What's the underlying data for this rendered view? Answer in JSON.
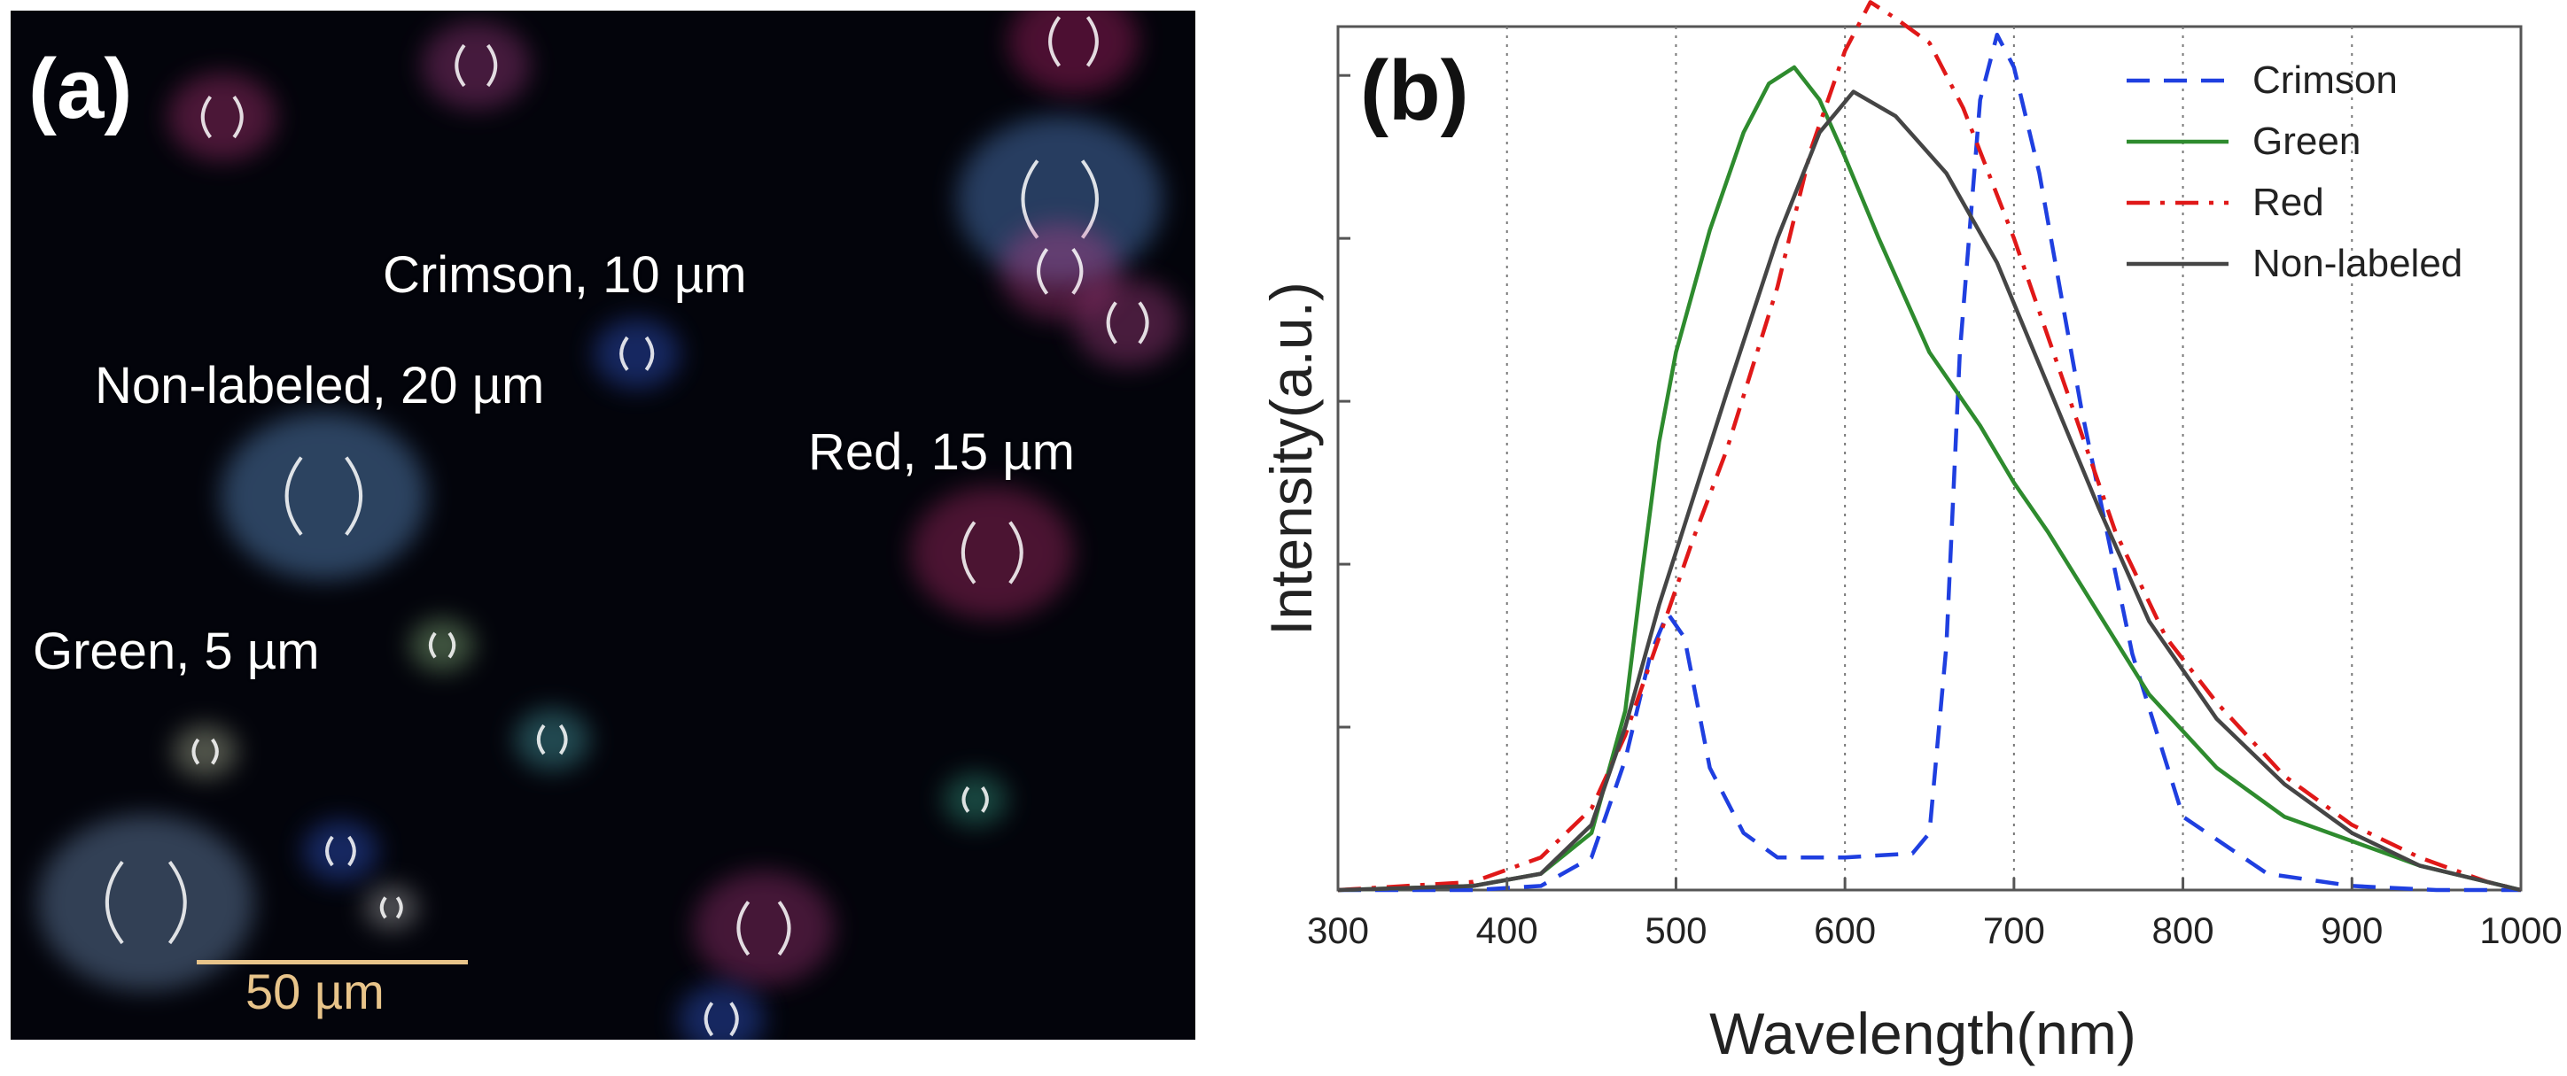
{
  "panel_a": {
    "tag": "(a)",
    "labels": {
      "crimson": "Crimson, 10 µm",
      "non_labeled": "Non-labeled, 20 µm",
      "red": "Red, 15 µm",
      "green": "Green, 5 µm"
    },
    "scale_bar": "50 µm",
    "colors": {
      "background": "#03040b",
      "scale": "#e8c48a"
    }
  },
  "chart_data": {
    "type": "line",
    "panel_tag": "(b)",
    "xlabel": "Wavelength(nm)",
    "ylabel": "Intensity(a.u.)",
    "xlim": [
      300,
      1000
    ],
    "ylim": [
      0,
      1.06
    ],
    "xticks": [
      300,
      400,
      500,
      600,
      700,
      800,
      900,
      1000
    ],
    "grid": "vertical dotted",
    "legend_position": "top-right",
    "series": [
      {
        "name": "Crimson",
        "color": "#1f3fe0",
        "dash": "dashed",
        "x": [
          300,
          380,
          420,
          450,
          470,
          485,
          495,
          505,
          520,
          540,
          560,
          600,
          640,
          650,
          660,
          668,
          680,
          690,
          700,
          715,
          740,
          770,
          800,
          850,
          900,
          950,
          1000
        ],
        "y": [
          0.0,
          0.0,
          0.005,
          0.04,
          0.16,
          0.29,
          0.34,
          0.31,
          0.15,
          0.07,
          0.04,
          0.04,
          0.045,
          0.07,
          0.3,
          0.66,
          0.97,
          1.05,
          1.01,
          0.88,
          0.59,
          0.29,
          0.09,
          0.02,
          0.005,
          0.0,
          0.0
        ]
      },
      {
        "name": "Green",
        "color": "#2e8b2e",
        "dash": "solid",
        "x": [
          300,
          380,
          420,
          450,
          470,
          480,
          490,
          500,
          520,
          540,
          555,
          570,
          585,
          600,
          620,
          650,
          680,
          700,
          720,
          750,
          780,
          820,
          860,
          900,
          940,
          980,
          1000
        ],
        "y": [
          0.0,
          0.005,
          0.02,
          0.07,
          0.22,
          0.39,
          0.55,
          0.66,
          0.81,
          0.93,
          0.99,
          1.01,
          0.97,
          0.9,
          0.8,
          0.66,
          0.57,
          0.5,
          0.44,
          0.34,
          0.24,
          0.15,
          0.09,
          0.06,
          0.03,
          0.01,
          0.0
        ]
      },
      {
        "name": "Red",
        "color": "#e01818",
        "dash": "dashdot",
        "x": [
          300,
          380,
          420,
          450,
          470,
          490,
          510,
          530,
          560,
          580,
          600,
          615,
          630,
          650,
          670,
          700,
          730,
          760,
          790,
          820,
          860,
          900,
          940,
          980,
          1000
        ],
        "y": [
          0.0,
          0.01,
          0.04,
          0.1,
          0.19,
          0.31,
          0.43,
          0.54,
          0.74,
          0.91,
          1.03,
          1.09,
          1.07,
          1.04,
          0.96,
          0.8,
          0.62,
          0.44,
          0.31,
          0.23,
          0.14,
          0.08,
          0.04,
          0.01,
          0.0
        ]
      },
      {
        "name": "Non-labeled",
        "color": "#454545",
        "dash": "solid",
        "x": [
          300,
          380,
          420,
          450,
          470,
          490,
          510,
          530,
          560,
          585,
          605,
          630,
          660,
          690,
          720,
          750,
          780,
          820,
          860,
          900,
          940,
          980,
          1000
        ],
        "y": [
          0.0,
          0.005,
          0.02,
          0.08,
          0.2,
          0.35,
          0.48,
          0.61,
          0.8,
          0.93,
          0.98,
          0.95,
          0.88,
          0.77,
          0.62,
          0.47,
          0.33,
          0.21,
          0.13,
          0.07,
          0.03,
          0.01,
          0.0
        ]
      }
    ]
  }
}
